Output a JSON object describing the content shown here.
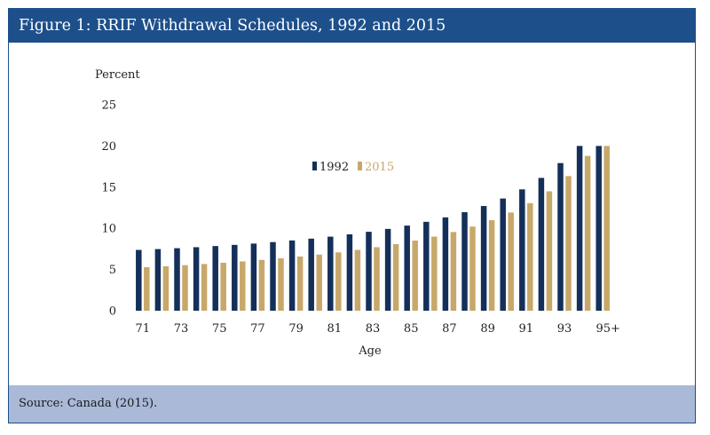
{
  "header": {
    "title": "Figure 1: RRIF Withdrawal Schedules, 1992 and 2015"
  },
  "footer": {
    "source": "Source: Canada (2015)."
  },
  "colors": {
    "accent": "#1d4f8a",
    "footer_bg": "#a9b9d7",
    "series_1992": "#14305a",
    "series_2015": "#c8a86a"
  },
  "chart_data": {
    "type": "bar",
    "title": "",
    "ylabel": "Percent",
    "xlabel": "Age",
    "ylim": [
      0,
      25
    ],
    "yticks": [
      0,
      5,
      10,
      15,
      20,
      25
    ],
    "grid": false,
    "legend": "top-center",
    "categories": [
      "71",
      "72",
      "73",
      "74",
      "75",
      "76",
      "77",
      "78",
      "79",
      "80",
      "81",
      "82",
      "83",
      "84",
      "85",
      "86",
      "87",
      "88",
      "89",
      "90",
      "91",
      "92",
      "93",
      "94",
      "95+"
    ],
    "xtick_labels": [
      "71",
      "73",
      "75",
      "77",
      "79",
      "81",
      "83",
      "85",
      "87",
      "89",
      "91",
      "93",
      "95+"
    ],
    "series": [
      {
        "name": "1992",
        "color": "#14305a",
        "values": [
          7.38,
          7.48,
          7.59,
          7.71,
          7.85,
          7.99,
          8.15,
          8.33,
          8.53,
          8.75,
          8.99,
          9.27,
          9.58,
          9.93,
          10.33,
          10.79,
          11.33,
          11.96,
          12.71,
          13.62,
          14.73,
          16.12,
          17.92,
          20.0,
          20.0
        ]
      },
      {
        "name": "2015",
        "color": "#c8a86a",
        "values": [
          5.28,
          5.4,
          5.53,
          5.67,
          5.82,
          5.98,
          6.17,
          6.36,
          6.58,
          6.82,
          7.08,
          7.38,
          7.71,
          8.08,
          8.51,
          8.99,
          9.55,
          10.21,
          10.99,
          11.92,
          13.06,
          14.49,
          16.34,
          18.79,
          20.0
        ]
      }
    ]
  }
}
